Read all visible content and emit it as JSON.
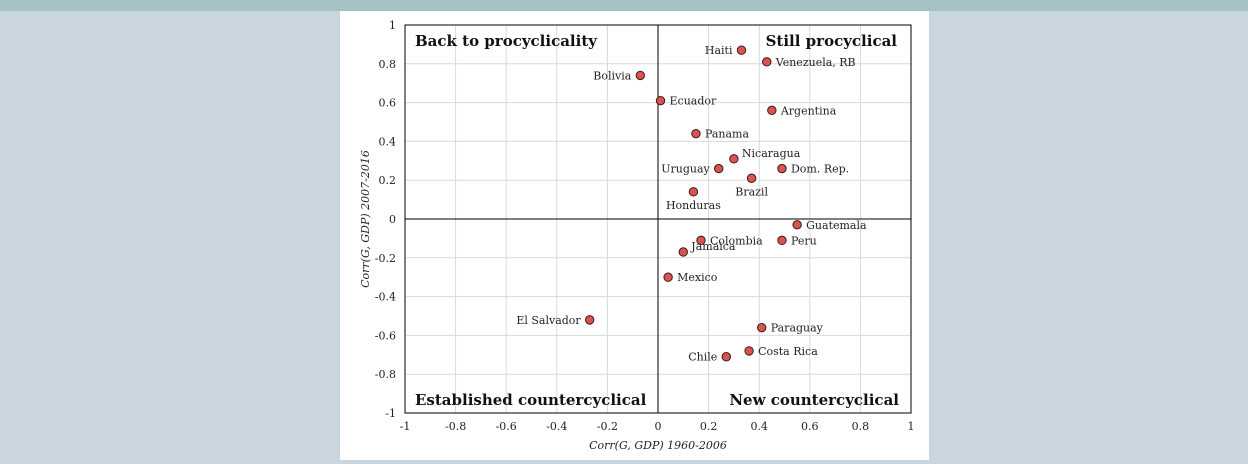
{
  "chart_data": {
    "type": "scatter",
    "xlabel": "Corr(G, GDP) 1960-2006",
    "ylabel": "Corr(G, GDP) 2007-2016",
    "xlim": [
      -1,
      1
    ],
    "ylim": [
      -1,
      1
    ],
    "x_ticks": [
      "-1",
      "-0.8",
      "-0.6",
      "-0.4",
      "-0.2",
      "0",
      "0.2",
      "0.4",
      "0.6",
      "0.8",
      "1"
    ],
    "y_ticks": [
      "-1",
      "-0.8",
      "-0.6",
      "-0.4",
      "-0.2",
      "0",
      "0.2",
      "0.4",
      "0.6",
      "0.8",
      "1"
    ],
    "grid": true,
    "marker_color": "#d9534f",
    "quadrant_labels": {
      "top_left": "Back to procyclicality",
      "top_right": "Still procyclical",
      "bottom_left": "Established countercyclical",
      "bottom_right": "New countercyclical"
    },
    "points": [
      {
        "label": "Haiti",
        "x": 0.33,
        "y": 0.87,
        "anchor": "left"
      },
      {
        "label": "Venezuela, RB",
        "x": 0.43,
        "y": 0.81,
        "anchor": "right"
      },
      {
        "label": "Bolivia",
        "x": -0.07,
        "y": 0.74,
        "anchor": "left"
      },
      {
        "label": "Ecuador",
        "x": 0.01,
        "y": 0.61,
        "anchor": "right"
      },
      {
        "label": "Argentina",
        "x": 0.45,
        "y": 0.56,
        "anchor": "right"
      },
      {
        "label": "Panama",
        "x": 0.15,
        "y": 0.44,
        "anchor": "right"
      },
      {
        "label": "Nicaragua",
        "x": 0.3,
        "y": 0.31,
        "anchor": "right-up"
      },
      {
        "label": "Uruguay",
        "x": 0.24,
        "y": 0.26,
        "anchor": "left"
      },
      {
        "label": "Dom. Rep.",
        "x": 0.49,
        "y": 0.26,
        "anchor": "right"
      },
      {
        "label": "Brazil",
        "x": 0.37,
        "y": 0.21,
        "anchor": "below"
      },
      {
        "label": "Honduras",
        "x": 0.14,
        "y": 0.14,
        "anchor": "below"
      },
      {
        "label": "Guatemala",
        "x": 0.55,
        "y": -0.03,
        "anchor": "right"
      },
      {
        "label": "Colombia",
        "x": 0.17,
        "y": -0.11,
        "anchor": "right"
      },
      {
        "label": "Peru",
        "x": 0.49,
        "y": -0.11,
        "anchor": "right"
      },
      {
        "label": "Jamaica",
        "x": 0.1,
        "y": -0.17,
        "anchor": "right-up"
      },
      {
        "label": "Mexico",
        "x": 0.04,
        "y": -0.3,
        "anchor": "right"
      },
      {
        "label": "El Salvador",
        "x": -0.27,
        "y": -0.52,
        "anchor": "left"
      },
      {
        "label": "Paraguay",
        "x": 0.41,
        "y": -0.56,
        "anchor": "right"
      },
      {
        "label": "Costa Rica",
        "x": 0.36,
        "y": -0.68,
        "anchor": "right"
      },
      {
        "label": "Chile",
        "x": 0.27,
        "y": -0.71,
        "anchor": "left"
      }
    ]
  }
}
